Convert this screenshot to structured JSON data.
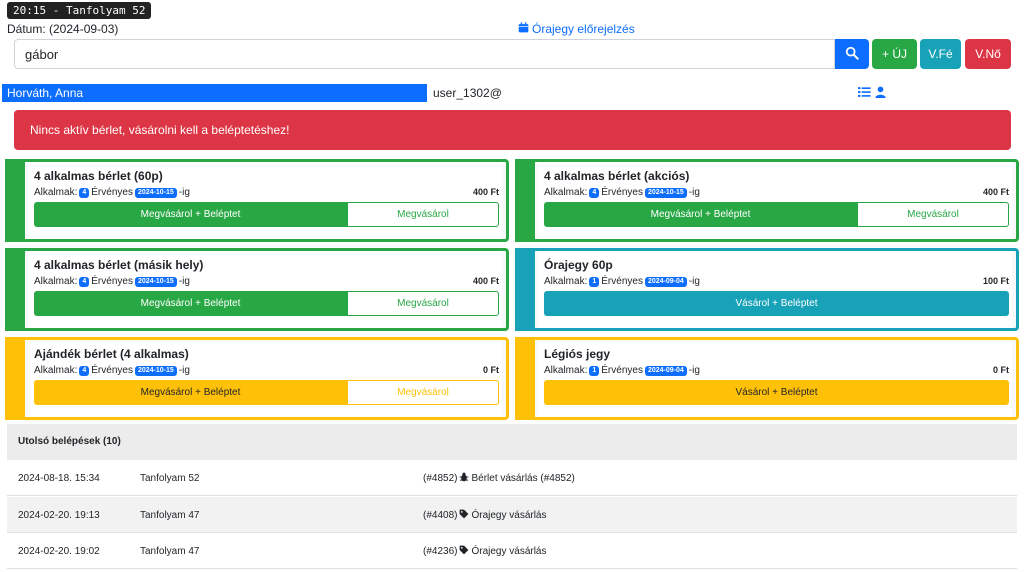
{
  "header": {
    "tag": "20:15 - Tanfolyam 52",
    "date": "Dátum: (2024-09-03)",
    "forecast": "Órajegy előrejelzés"
  },
  "search": {
    "value": "gábor",
    "placeholder": ""
  },
  "toolbar": {
    "new_label": "+ ÚJ",
    "vfe_label": "V.Fé",
    "vno_label": "V.Nő"
  },
  "user": {
    "name": "Horváth, Anna",
    "email": "user_1302@"
  },
  "alert": "Nincs aktív bérlet, vásárolni kell a beléptetéshez!",
  "cards": [
    {
      "title": "4 alkalmas bérlet (60p)",
      "alkalmak": "Alkalmak:",
      "count": "4",
      "ervenyes": "Érvényes",
      "date": "2024-10-15",
      "suffix": "-ig",
      "price": "400 Ft",
      "btn1": "Megvásárol + Beléptet",
      "btn2": "Megvásárol",
      "color": "#28a745"
    },
    {
      "title": "4 alkalmas bérlet (akciós)",
      "alkalmak": "Alkalmak:",
      "count": "4",
      "ervenyes": "Érvényes",
      "date": "2024-10-15",
      "suffix": "-ig",
      "price": "400 Ft",
      "btn1": "Megvásárol + Beléptet",
      "btn2": "Megvásárol",
      "color": "#28a745"
    },
    {
      "title": "4 alkalmas bérlet (másik hely)",
      "alkalmak": "Alkalmak:",
      "count": "4",
      "ervenyes": "Érvényes",
      "date": "2024-10-15",
      "suffix": "-ig",
      "price": "400 Ft",
      "btn1": "Megvásárol + Beléptet",
      "btn2": "Megvásárol",
      "color": "#28a745"
    },
    {
      "title": "Órajegy 60p",
      "alkalmak": "Alkalmak:",
      "count": "1",
      "ervenyes": "Érvényes",
      "date": "2024-09-04",
      "suffix": "-ig",
      "price": "100 Ft",
      "btn1": "Vásárol + Beléptet",
      "color": "#17a2b8"
    },
    {
      "title": "Ajándék bérlet (4 alkalmas)",
      "alkalmak": "Alkalmak:",
      "count": "4",
      "ervenyes": "Érvényes",
      "date": "2024-10-15",
      "suffix": "-ig",
      "price": "0 Ft",
      "btn1": "Megvásárol + Beléptet",
      "btn2": "Megvásárol",
      "color": "#ffc107"
    },
    {
      "title": "Légiós jegy",
      "alkalmak": "Alkalmak:",
      "count": "1",
      "ervenyes": "Érvényes",
      "date": "2024-09-04",
      "suffix": "-ig",
      "price": "0 Ft",
      "btn1": "Vásárol + Beléptet",
      "color": "#ffc107"
    }
  ],
  "recent": {
    "title": "Utolsó belépések (10)",
    "rows": [
      {
        "date": "2024-08-18. 15:34",
        "course": "Tanfolyam 52",
        "id": "(#4852)",
        "icon": "bug-icon",
        "desc": "Bérlet vásárlás (#4852)"
      },
      {
        "date": "2024-02-20. 19:13",
        "course": "Tanfolyam 47",
        "id": "(#4408)",
        "icon": "tag-icon",
        "desc": "Órajegy vásárlás"
      },
      {
        "date": "2024-02-20. 19:02",
        "course": "Tanfolyam 47",
        "id": "(#4236)",
        "icon": "tag-icon",
        "desc": "Órajegy vásárlás"
      }
    ]
  }
}
